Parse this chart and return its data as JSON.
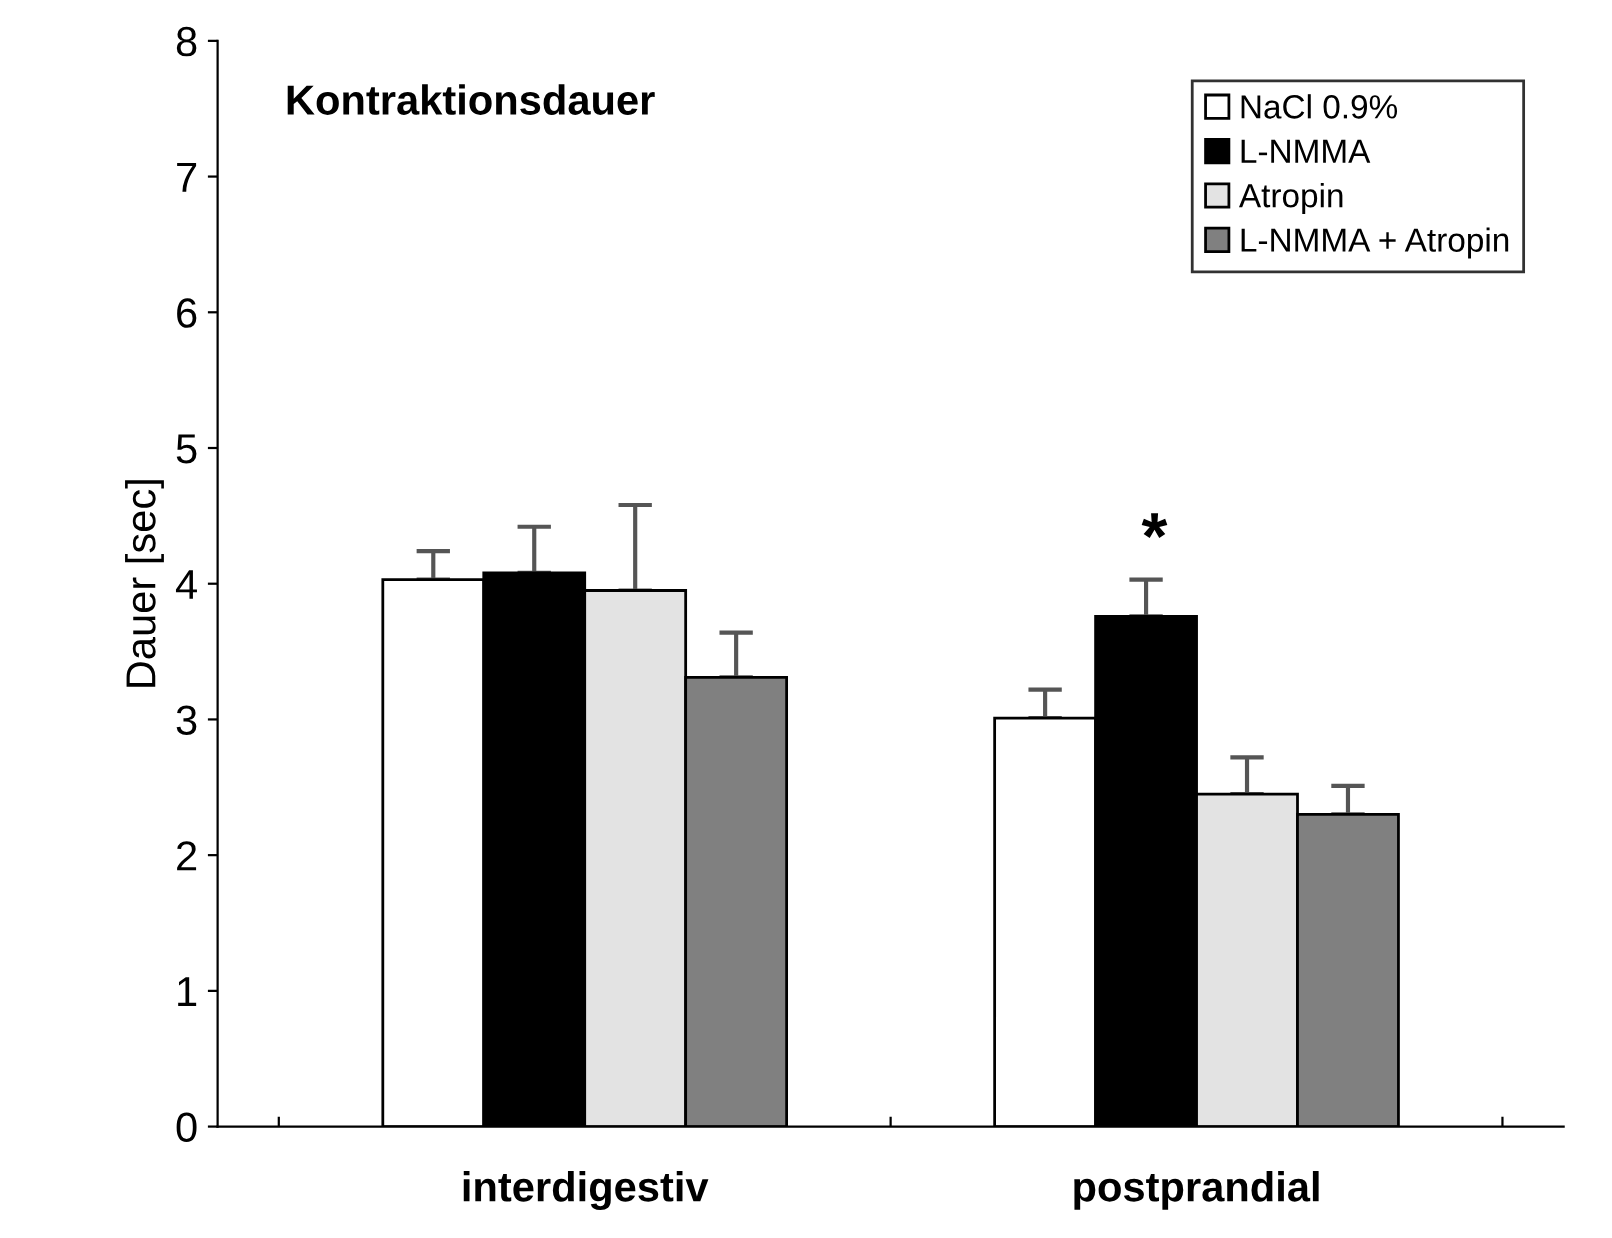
{
  "chart_data": {
    "type": "bar",
    "title": "Kontraktionsdauer",
    "ylabel": "Dauer [sec]",
    "categories": [
      "interdigestiv",
      "postprandial"
    ],
    "series": [
      {
        "name": "NaCl 0.9%",
        "color": "#ffffff",
        "values": [
          4.03,
          3.01
        ],
        "errors": [
          [
            4.03,
            4.24
          ],
          [
            3.01,
            3.22
          ]
        ]
      },
      {
        "name": "L-NMMA",
        "color": "#000000",
        "values": [
          4.08,
          3.76
        ],
        "errors": [
          [
            4.08,
            4.42
          ],
          [
            3.76,
            4.03
          ]
        ]
      },
      {
        "name": "Atropin",
        "color": "#e3e3e3",
        "values": [
          3.95,
          2.45
        ],
        "errors": [
          [
            3.95,
            4.58
          ],
          [
            2.45,
            2.72
          ]
        ]
      },
      {
        "name": "L-NMMA + Atropin",
        "color": "#808080",
        "values": [
          3.31,
          2.3
        ],
        "errors": [
          [
            3.31,
            3.64
          ],
          [
            2.3,
            2.51
          ]
        ]
      }
    ],
    "annotations": [
      "*"
    ],
    "ylim": [
      0,
      8
    ],
    "yticks": [
      0,
      1,
      2,
      3,
      4,
      5,
      6,
      7,
      8
    ],
    "grid": false,
    "legend": "top right"
  }
}
